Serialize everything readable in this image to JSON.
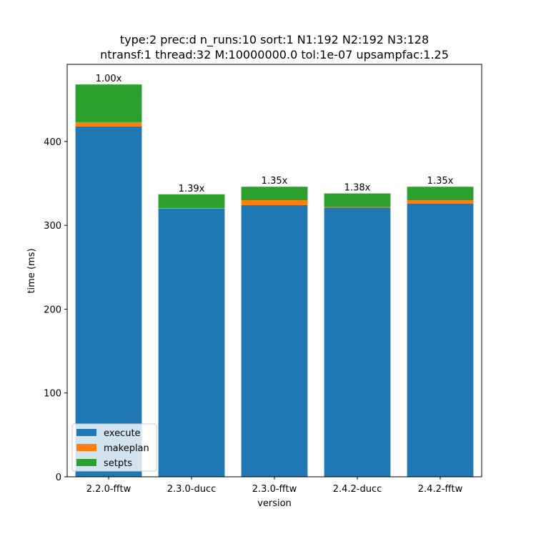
{
  "chart_data": {
    "type": "bar",
    "stacked": true,
    "title_line1": "type:2 prec:d n_runs:10 sort:1 N1:192 N2:192 N3:128",
    "title_line2": "ntransf:1 thread:32 M:10000000.0 tol:1e-07 upsampfac:1.25",
    "xlabel": "version",
    "ylabel": "time (ms)",
    "ylim": [
      0,
      492
    ],
    "yticks": [
      0,
      100,
      200,
      300,
      400
    ],
    "categories": [
      "2.2.0-fftw",
      "2.3.0-ducc",
      "2.3.0-fftw",
      "2.4.2-ducc",
      "2.4.2-fftw"
    ],
    "series": [
      {
        "name": "execute",
        "color": "#1f77b4",
        "values": [
          418,
          320,
          324,
          321,
          326
        ]
      },
      {
        "name": "makeplan",
        "color": "#ff7f0e",
        "values": [
          5,
          0.5,
          6,
          1,
          4
        ]
      },
      {
        "name": "setpts",
        "color": "#2ca02c",
        "values": [
          45,
          16.5,
          16,
          16,
          16
        ]
      }
    ],
    "bar_labels": [
      "1.00x",
      "1.39x",
      "1.35x",
      "1.38x",
      "1.35x"
    ],
    "legend_position": "lower-left",
    "grid": false
  }
}
